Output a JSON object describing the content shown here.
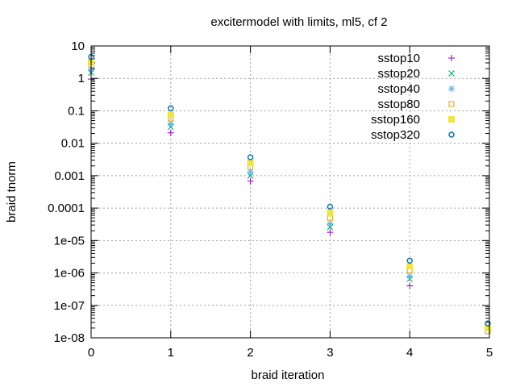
{
  "chart_data": {
    "type": "scatter",
    "title": "excitermodel with limits, ml5, cf 2",
    "xlabel": "braid iteration",
    "ylabel": "braid tnorm",
    "xlim": [
      0,
      5
    ],
    "ylim": [
      1e-08,
      10
    ],
    "y_scale": "log",
    "grid": true,
    "legend_position": "top-right",
    "x_ticks": [
      "0",
      "1",
      "2",
      "3",
      "4",
      "5"
    ],
    "y_ticks": [
      {
        "value": 10,
        "label": "10"
      },
      {
        "value": 1,
        "label": "1"
      },
      {
        "value": 0.1,
        "label": "0.1"
      },
      {
        "value": 0.01,
        "label": "0.01"
      },
      {
        "value": 0.001,
        "label": "0.001"
      },
      {
        "value": 0.0001,
        "label": "0.0001"
      },
      {
        "value": 1e-05,
        "label": "1e-05"
      },
      {
        "value": 1e-06,
        "label": "1e-06"
      },
      {
        "value": 1e-07,
        "label": "1e-07"
      },
      {
        "value": 1e-08,
        "label": "1e-08"
      }
    ],
    "series": [
      {
        "name": "sstop10",
        "color": "#9400d3",
        "marker": "plus",
        "x": [
          0,
          1,
          2,
          3,
          4
        ],
        "y": [
          0.95,
          0.021,
          0.00068,
          1.8e-05,
          4e-07
        ]
      },
      {
        "name": "sstop20",
        "color": "#009e73",
        "marker": "cross",
        "x": [
          0,
          1,
          2,
          3,
          4
        ],
        "y": [
          1.5,
          0.032,
          0.001,
          2.6e-05,
          6.5e-07
        ]
      },
      {
        "name": "sstop40",
        "color": "#56b4e9",
        "marker": "star",
        "x": [
          0,
          1,
          2,
          3,
          4
        ],
        "y": [
          1.9,
          0.04,
          0.0013,
          3.3e-05,
          8e-07
        ]
      },
      {
        "name": "sstop80",
        "color": "#e6a000",
        "marker": "open-square",
        "x": [
          0,
          1,
          2,
          3,
          4,
          5
        ],
        "y": [
          2.6,
          0.058,
          0.0018,
          5e-05,
          1.2e-06,
          1.6e-08
        ]
      },
      {
        "name": "sstop160",
        "color": "#f0e442",
        "marker": "filled-square",
        "x": [
          0,
          1,
          2,
          3,
          4,
          5
        ],
        "y": [
          3.2,
          0.075,
          0.0025,
          7e-05,
          1.6e-06,
          2e-08
        ]
      },
      {
        "name": "sstop320",
        "color": "#0072b2",
        "marker": "open-circle",
        "x": [
          0,
          1,
          2,
          3,
          4,
          5
        ],
        "y": [
          4.6,
          0.12,
          0.0037,
          0.00011,
          2.4e-06,
          2.8e-08
        ]
      }
    ]
  }
}
